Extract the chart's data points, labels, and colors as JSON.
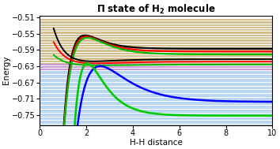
{
  "title": "Π state of H₂ molecule",
  "xlabel": "H-H distance",
  "ylabel": "Energy",
  "xlim": [
    0,
    10
  ],
  "ylim": [
    -0.775,
    -0.505
  ],
  "xticks": [
    0,
    2,
    4,
    6,
    8,
    10
  ],
  "yticks": [
    -0.51,
    -0.55,
    -0.59,
    -0.63,
    -0.67,
    -0.71,
    -0.75
  ],
  "figsize": [
    3.54,
    1.89
  ],
  "dpi": 100,
  "curves": [
    {
      "color": "#000000",
      "lw": 1.6,
      "r_eq": 1.95,
      "e_eq": -0.587,
      "e_inf": -0.554,
      "beta": 1.4,
      "x_start": 0.6
    },
    {
      "color": "#ff0000",
      "lw": 1.6,
      "r_eq": 2.0,
      "e_eq": -0.594,
      "e_inf": -0.557,
      "beta": 1.3,
      "x_start": 0.6
    },
    {
      "color": "#00bb00",
      "lw": 1.6,
      "r_eq": 2.05,
      "e_eq": -0.601,
      "e_inf": -0.56,
      "beta": 1.2,
      "x_start": 0.6
    },
    {
      "color": "#000000",
      "lw": 1.4,
      "r_eq": 2.3,
      "e_eq": -0.613,
      "e_inf": -0.618,
      "beta": 0.95,
      "x_start": 0.6
    },
    {
      "color": "#ff0000",
      "lw": 1.4,
      "r_eq": 2.4,
      "e_eq": -0.619,
      "e_inf": -0.623,
      "beta": 0.85,
      "x_start": 0.6
    },
    {
      "color": "#00bb00",
      "lw": 1.4,
      "r_eq": 2.5,
      "e_eq": -0.626,
      "e_inf": -0.628,
      "beta": 0.8,
      "x_start": 0.6
    },
    {
      "color": "#0000ff",
      "lw": 1.8,
      "r_eq": 2.6,
      "e_eq": -0.718,
      "e_inf": -0.63,
      "beta": 0.85,
      "x_start": 0.65
    },
    {
      "color": "#00cc00",
      "lw": 1.9,
      "r_eq": 2.05,
      "e_eq": -0.752,
      "e_inf": -0.623,
      "beta": 1.35,
      "x_start": 0.65
    }
  ],
  "upper_hlines": {
    "n": 40,
    "e_min": -0.513,
    "e_max": -0.622,
    "colors_cycle": [
      "#c8a050",
      "#b89040",
      "#c0a858",
      "#b08848",
      "#c8b060",
      "#b09848"
    ],
    "lw": 0.45
  },
  "purple_hlines": {
    "n": 6,
    "e_min": -0.624,
    "e_max": -0.638,
    "color": "#b060c0",
    "lw": 0.45
  },
  "blue_hlines": {
    "n": 55,
    "e_min": -0.641,
    "e_max": -0.773,
    "colors_cycle": [
      "#88b8e8",
      "#a0c8f0"
    ],
    "lw": 0.45
  }
}
